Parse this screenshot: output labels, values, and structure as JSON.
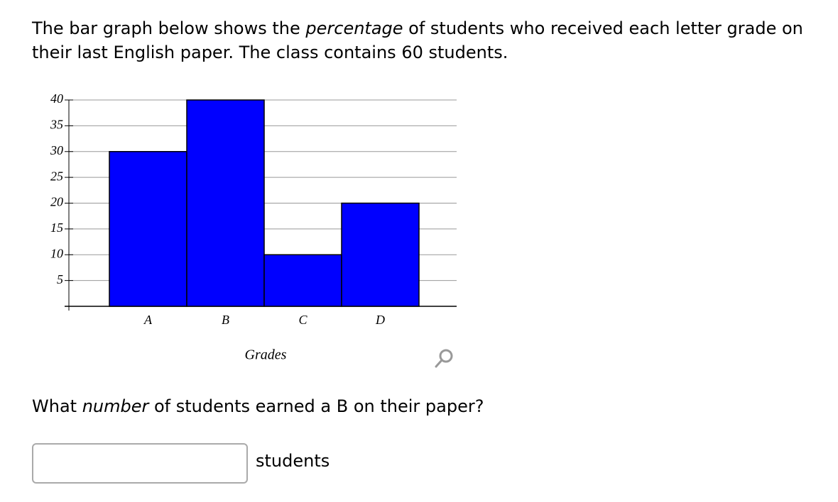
{
  "intro": {
    "before": "The bar graph below shows the ",
    "emphasis": "percentage",
    "after": " of students who received each letter grade on their last English paper. The class contains 60 students."
  },
  "chart_data": {
    "type": "bar",
    "categories": [
      "A",
      "B",
      "C",
      "D"
    ],
    "values": [
      30,
      40,
      10,
      20
    ],
    "color": "#0000ff",
    "xlabel": "Grades",
    "ylim": [
      0,
      40
    ],
    "yticks": [
      5,
      10,
      15,
      20,
      25,
      30,
      35,
      40
    ],
    "grid": true
  },
  "question": {
    "before": "What ",
    "emphasis": "number",
    "after": " of students earned a B on their paper?"
  },
  "answer": {
    "unit": "students"
  }
}
